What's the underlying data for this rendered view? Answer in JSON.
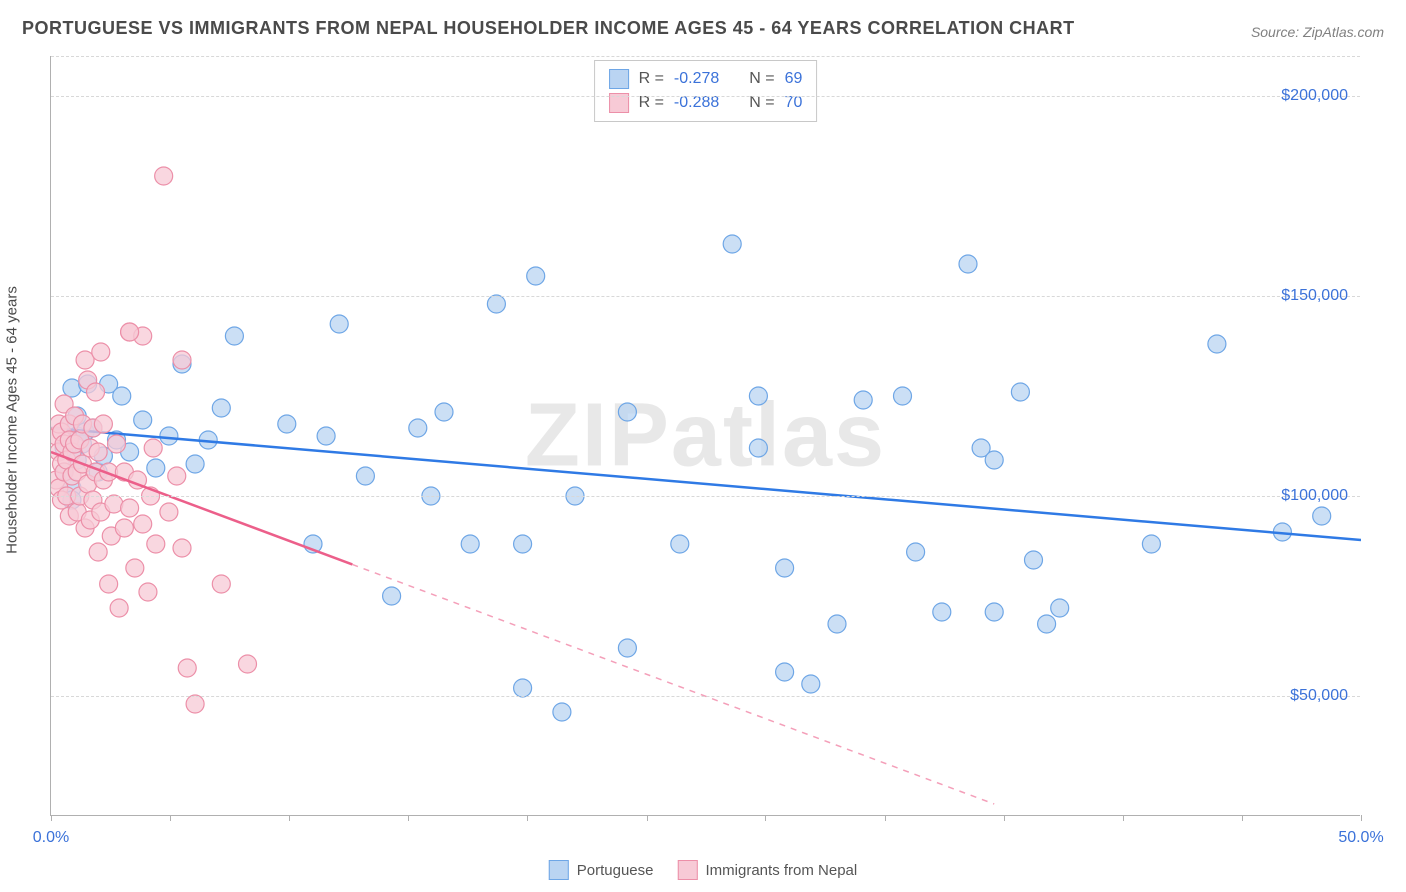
{
  "title": "PORTUGUESE VS IMMIGRANTS FROM NEPAL HOUSEHOLDER INCOME AGES 45 - 64 YEARS CORRELATION CHART",
  "source": "Source: ZipAtlas.com",
  "watermark": "ZIPatlas",
  "yaxis_title": "Householder Income Ages 45 - 64 years",
  "chart": {
    "type": "scatter",
    "xlim": [
      0,
      50
    ],
    "ylim": [
      20000,
      210000
    ],
    "x_tick_positions": [
      0,
      4.55,
      9.09,
      13.64,
      18.18,
      22.73,
      27.27,
      31.82,
      36.36,
      40.91,
      45.45,
      50
    ],
    "x_tick_labels_shown": {
      "0": "0.0%",
      "50": "50.0%"
    },
    "y_gridlines": [
      50000,
      100000,
      150000,
      200000
    ],
    "y_tick_labels": [
      "$50,000",
      "$100,000",
      "$150,000",
      "$200,000"
    ],
    "background_color": "#ffffff",
    "grid_color": "#d8d8d8",
    "axis_color": "#b0b0b0",
    "text_color": "#4a4a4a",
    "tick_label_color": "#3b72d9",
    "tick_label_fontsize": 16,
    "title_fontsize": 18,
    "series": [
      {
        "name": "Portuguese",
        "marker_color_fill": "#bad4f2",
        "marker_color_stroke": "#6ea6e6",
        "marker_radius": 9,
        "marker_opacity": 0.75,
        "line_color": "#2f7ae5",
        "line_width": 2.5,
        "r": -0.278,
        "n": 69,
        "regression": {
          "x1": 0,
          "y1": 117000,
          "x2": 50,
          "y2": 89000
        },
        "regression_dash_after_x": null,
        "points": [
          [
            0.5,
            106000
          ],
          [
            0.5,
            112000
          ],
          [
            0.7,
            118000
          ],
          [
            0.8,
            102000
          ],
          [
            0.8,
            127000
          ],
          [
            0.8,
            99000
          ],
          [
            1.0,
            115000
          ],
          [
            1.0,
            109000
          ],
          [
            1.0,
            120000
          ],
          [
            1.2,
            113000
          ],
          [
            1.3,
            116000
          ],
          [
            1.4,
            128000
          ],
          [
            1.6,
            117000
          ],
          [
            1.8,
            106000
          ],
          [
            2.0,
            110000
          ],
          [
            2.2,
            128000
          ],
          [
            2.5,
            114000
          ],
          [
            2.7,
            125000
          ],
          [
            3.0,
            111000
          ],
          [
            3.5,
            119000
          ],
          [
            4.0,
            107000
          ],
          [
            4.5,
            115000
          ],
          [
            5.0,
            133000
          ],
          [
            5.5,
            108000
          ],
          [
            6.0,
            114000
          ],
          [
            6.5,
            122000
          ],
          [
            7.0,
            140000
          ],
          [
            9.0,
            118000
          ],
          [
            10.0,
            88000
          ],
          [
            10.5,
            115000
          ],
          [
            11.0,
            143000
          ],
          [
            12.0,
            105000
          ],
          [
            13.0,
            75000
          ],
          [
            14.0,
            117000
          ],
          [
            14.5,
            100000
          ],
          [
            15.0,
            121000
          ],
          [
            16.0,
            88000
          ],
          [
            17.0,
            148000
          ],
          [
            18.0,
            52000
          ],
          [
            18.0,
            88000
          ],
          [
            18.5,
            155000
          ],
          [
            19.5,
            46000
          ],
          [
            20.0,
            100000
          ],
          [
            22.0,
            121000
          ],
          [
            22.0,
            62000
          ],
          [
            24.0,
            88000
          ],
          [
            26.0,
            163000
          ],
          [
            27.0,
            112000
          ],
          [
            27.0,
            125000
          ],
          [
            28.0,
            56000
          ],
          [
            28.0,
            82000
          ],
          [
            29.0,
            53000
          ],
          [
            30.0,
            68000
          ],
          [
            31.0,
            124000
          ],
          [
            32.5,
            125000
          ],
          [
            33.0,
            86000
          ],
          [
            34.0,
            71000
          ],
          [
            35.0,
            158000
          ],
          [
            35.5,
            112000
          ],
          [
            36.0,
            71000
          ],
          [
            36.0,
            109000
          ],
          [
            37.0,
            126000
          ],
          [
            37.5,
            84000
          ],
          [
            38.0,
            68000
          ],
          [
            38.5,
            72000
          ],
          [
            42.0,
            88000
          ],
          [
            44.5,
            138000
          ],
          [
            47.0,
            91000
          ],
          [
            48.5,
            95000
          ]
        ]
      },
      {
        "name": "Immigrants from Nepal",
        "marker_color_fill": "#f7cad6",
        "marker_color_stroke": "#ec8fa8",
        "marker_radius": 9,
        "marker_opacity": 0.75,
        "line_color": "#ec5f8a",
        "line_width": 2.5,
        "r": -0.288,
        "n": 70,
        "regression": {
          "x1": 0,
          "y1": 111000,
          "x2": 36,
          "y2": 23000
        },
        "regression_dash_after_x": 11.5,
        "points": [
          [
            0.2,
            115000
          ],
          [
            0.2,
            104000
          ],
          [
            0.3,
            102000
          ],
          [
            0.3,
            111000
          ],
          [
            0.3,
            118000
          ],
          [
            0.4,
            108000
          ],
          [
            0.4,
            116000
          ],
          [
            0.4,
            99000
          ],
          [
            0.5,
            113000
          ],
          [
            0.5,
            106000
          ],
          [
            0.5,
            123000
          ],
          [
            0.6,
            109000
          ],
          [
            0.6,
            100000
          ],
          [
            0.7,
            118000
          ],
          [
            0.7,
            114000
          ],
          [
            0.7,
            95000
          ],
          [
            0.8,
            111000
          ],
          [
            0.8,
            105000
          ],
          [
            0.9,
            120000
          ],
          [
            0.9,
            113000
          ],
          [
            1.0,
            96000
          ],
          [
            1.0,
            106000
          ],
          [
            1.1,
            114000
          ],
          [
            1.1,
            100000
          ],
          [
            1.2,
            108000
          ],
          [
            1.2,
            118000
          ],
          [
            1.3,
            92000
          ],
          [
            1.3,
            134000
          ],
          [
            1.4,
            103000
          ],
          [
            1.4,
            129000
          ],
          [
            1.5,
            112000
          ],
          [
            1.5,
            94000
          ],
          [
            1.6,
            117000
          ],
          [
            1.6,
            99000
          ],
          [
            1.7,
            106000
          ],
          [
            1.7,
            126000
          ],
          [
            1.8,
            86000
          ],
          [
            1.8,
            111000
          ],
          [
            1.9,
            136000
          ],
          [
            1.9,
            96000
          ],
          [
            2.0,
            104000
          ],
          [
            2.0,
            118000
          ],
          [
            2.2,
            78000
          ],
          [
            2.2,
            106000
          ],
          [
            2.3,
            90000
          ],
          [
            2.4,
            98000
          ],
          [
            2.5,
            113000
          ],
          [
            2.6,
            72000
          ],
          [
            2.8,
            106000
          ],
          [
            2.8,
            92000
          ],
          [
            3.0,
            141000
          ],
          [
            3.0,
            97000
          ],
          [
            3.2,
            82000
          ],
          [
            3.3,
            104000
          ],
          [
            3.5,
            140000
          ],
          [
            3.5,
            93000
          ],
          [
            3.7,
            76000
          ],
          [
            3.8,
            100000
          ],
          [
            3.9,
            112000
          ],
          [
            4.0,
            88000
          ],
          [
            4.3,
            180000
          ],
          [
            4.5,
            96000
          ],
          [
            4.8,
            105000
          ],
          [
            5.0,
            87000
          ],
          [
            5.2,
            57000
          ],
          [
            5.5,
            48000
          ],
          [
            6.5,
            78000
          ],
          [
            7.5,
            58000
          ],
          [
            5.0,
            134000
          ],
          [
            3.0,
            141000
          ]
        ]
      }
    ]
  },
  "legend_top": {
    "r_label": "R =",
    "n_label": "N ="
  },
  "legend_bottom": {
    "items": [
      "Portuguese",
      "Immigrants from Nepal"
    ]
  }
}
